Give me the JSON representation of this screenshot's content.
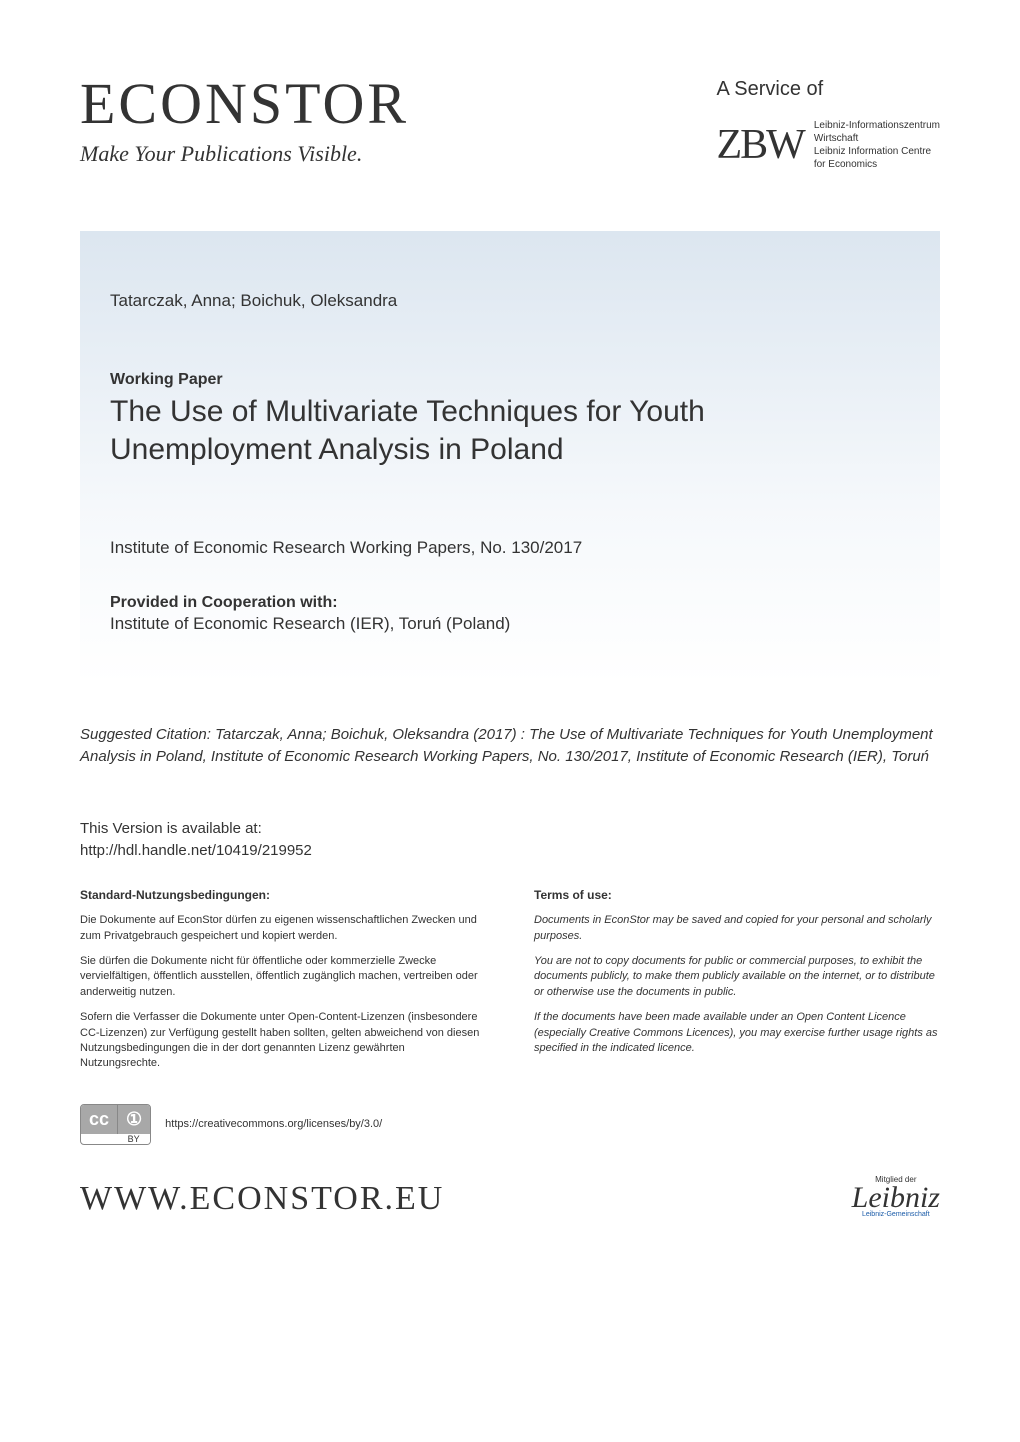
{
  "colors": {
    "text": "#333333",
    "panel_top": "#dce6f0",
    "panel_bottom": "#ffffff",
    "cc_badge_bg": "#a8a8a8",
    "cc_badge_fg": "#ffffff",
    "leibniz_accent": "#1a5ba8"
  },
  "header": {
    "logo_text": "ECONSTOR",
    "tagline": "Make Your Publications Visible.",
    "service_of": "A Service of",
    "zbw_logo": "ZBW",
    "zbw_desc_line1": "Leibniz-Informationszentrum",
    "zbw_desc_line2": "Wirtschaft",
    "zbw_desc_line3": "Leibniz Information Centre",
    "zbw_desc_line4": "for Economics"
  },
  "paper": {
    "authors": "Tatarczak, Anna; Boichuk, Oleksandra",
    "doc_type": "Working Paper",
    "title": "The Use of Multivariate Techniques for Youth Unemployment Analysis in Poland",
    "series": "Institute of Economic Research Working Papers, No. 130/2017",
    "coop_label": "Provided in Cooperation with:",
    "coop_institution": "Institute of Economic Research (IER), Toruń (Poland)"
  },
  "citation": {
    "label": "Suggested Citation:",
    "text": " Tatarczak, Anna; Boichuk, Oleksandra (2017) : The Use of Multivariate Techniques for Youth Unemployment Analysis in Poland, Institute of Economic Research Working Papers, No. 130/2017, Institute of Economic Research (IER), Toruń"
  },
  "version": {
    "label": "This Version is available at:",
    "url": "http://hdl.handle.net/10419/219952"
  },
  "terms": {
    "left": {
      "heading": "Standard-Nutzungsbedingungen:",
      "p1": "Die Dokumente auf EconStor dürfen zu eigenen wissenschaftlichen Zwecken und zum Privatgebrauch gespeichert und kopiert werden.",
      "p2": "Sie dürfen die Dokumente nicht für öffentliche oder kommerzielle Zwecke vervielfältigen, öffentlich ausstellen, öffentlich zugänglich machen, vertreiben oder anderweitig nutzen.",
      "p3": "Sofern die Verfasser die Dokumente unter Open-Content-Lizenzen (insbesondere CC-Lizenzen) zur Verfügung gestellt haben sollten, gelten abweichend von diesen Nutzungsbedingungen die in der dort genannten Lizenz gewährten Nutzungsrechte."
    },
    "right": {
      "heading": "Terms of use:",
      "p1": "Documents in EconStor may be saved and copied for your personal and scholarly purposes.",
      "p2": "You are not to copy documents for public or commercial purposes, to exhibit the documents publicly, to make them publicly available on the internet, or to distribute or otherwise use the documents in public.",
      "p3": "If the documents have been made available under an Open Content Licence (especially Creative Commons Licences), you may exercise further usage rights as specified in the indicated licence."
    }
  },
  "cc": {
    "cc_symbol": "cc",
    "by_symbol": "①",
    "by_text": "BY",
    "url": "https://creativecommons.org/licenses/by/3.0/"
  },
  "footer": {
    "www": "WWW.ECONSTOR.EU",
    "leibniz_top": "Mitglied der",
    "leibniz_sig": "Leibniz",
    "leibniz_bottom": "Leibniz-Gemeinschaft"
  },
  "typography": {
    "logo_fontsize": 58,
    "tagline_fontsize": 22,
    "title_fontsize": 30,
    "body_fontsize": 17,
    "terms_fontsize": 11,
    "www_fontsize": 34
  }
}
